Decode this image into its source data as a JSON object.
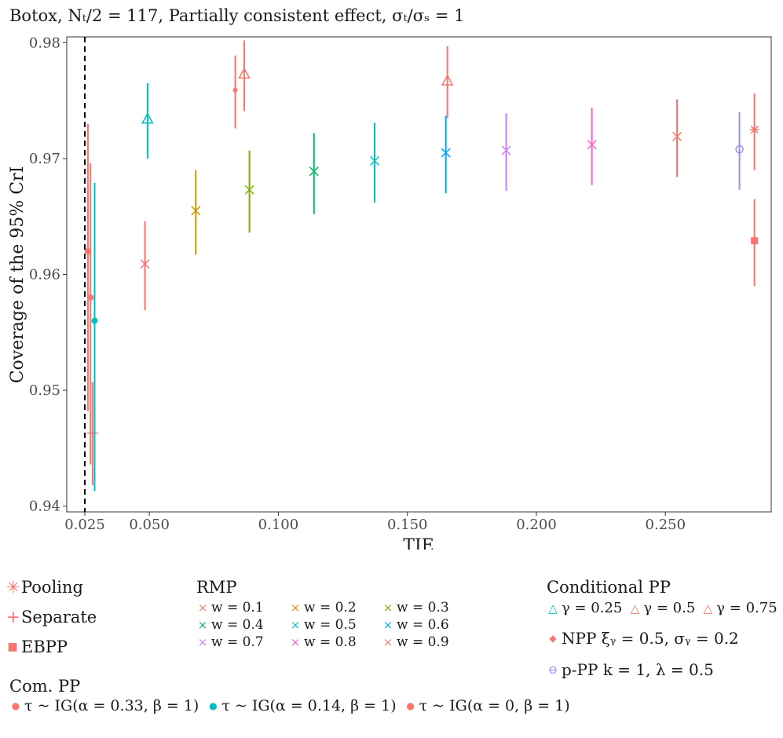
{
  "chart_data": {
    "type": "scatter",
    "title": "Botox, Nₜ/2 = 117, Partially consistent effect, σₜ/σₛ = 1",
    "xlabel": "TIE",
    "ylabel": "Coverage of the 95% CrI",
    "xlim": [
      0.018,
      0.291
    ],
    "ylim": [
      0.9395,
      0.9805
    ],
    "x_ticks": [
      0.025,
      0.05,
      0.1,
      0.15,
      0.2,
      0.25
    ],
    "x_tick_labels": [
      "0.025",
      "0.050",
      "0.100",
      "0.150",
      "0.200",
      "0.250"
    ],
    "y_ticks": [
      0.94,
      0.95,
      0.96,
      0.97,
      0.98
    ],
    "y_tick_labels": [
      "0.94",
      "0.95",
      "0.96",
      "0.97",
      "0.98"
    ],
    "grid": false,
    "reference_line": {
      "x": 0.025,
      "style": "dashed"
    },
    "series": [
      {
        "name": "Pooling",
        "shape": "asterisk",
        "color": "#F8766D",
        "points": [
          {
            "x": 0.2845,
            "y": 0.9725,
            "lo": 0.969,
            "hi": 0.9756
          }
        ]
      },
      {
        "name": "Separate",
        "shape": "plus",
        "color": "#F8766D",
        "points": [
          {
            "x": 0.028,
            "y": 0.9463,
            "lo": 0.9418,
            "hi": 0.9507
          }
        ]
      },
      {
        "name": "EBPP",
        "shape": "square",
        "color": "#F8766D",
        "points": [
          {
            "x": 0.2845,
            "y": 0.9629,
            "lo": 0.959,
            "hi": 0.9665
          }
        ]
      },
      {
        "name": "w = 0.1",
        "group": "RMP",
        "shape": "cross",
        "color": "#F8766D",
        "points": [
          {
            "x": 0.0483,
            "y": 0.9609,
            "lo": 0.9569,
            "hi": 0.9646
          }
        ]
      },
      {
        "name": "w = 0.2",
        "group": "RMP",
        "shape": "cross",
        "color": "#CD9600",
        "points": [
          {
            "x": 0.068,
            "y": 0.9655,
            "lo": 0.9617,
            "hi": 0.969
          }
        ]
      },
      {
        "name": "w = 0.3",
        "group": "RMP",
        "shape": "cross",
        "color": "#7CAE00",
        "points": [
          {
            "x": 0.0888,
            "y": 0.9673,
            "lo": 0.9636,
            "hi": 0.9707
          }
        ]
      },
      {
        "name": "w = 0.4",
        "group": "RMP",
        "shape": "cross",
        "color": "#00BE67",
        "points": [
          {
            "x": 0.1138,
            "y": 0.9689,
            "lo": 0.9652,
            "hi": 0.9722
          }
        ]
      },
      {
        "name": "w = 0.5",
        "group": "RMP",
        "shape": "cross",
        "color": "#00BFC4",
        "points": [
          {
            "x": 0.1373,
            "y": 0.9698,
            "lo": 0.9662,
            "hi": 0.9731
          }
        ]
      },
      {
        "name": "w = 0.6",
        "group": "RMP",
        "shape": "cross",
        "color": "#00A9FF",
        "points": [
          {
            "x": 0.1649,
            "y": 0.9705,
            "lo": 0.967,
            "hi": 0.9737
          }
        ]
      },
      {
        "name": "w = 0.7",
        "group": "RMP",
        "shape": "cross",
        "color": "#C77CFF",
        "points": [
          {
            "x": 0.1883,
            "y": 0.9707,
            "lo": 0.9672,
            "hi": 0.9739
          }
        ]
      },
      {
        "name": "w = 0.8",
        "group": "RMP",
        "shape": "cross",
        "color": "#FF61CC",
        "points": [
          {
            "x": 0.2215,
            "y": 0.9712,
            "lo": 0.9677,
            "hi": 0.9744
          }
        ]
      },
      {
        "name": "w = 0.9",
        "group": "RMP",
        "shape": "cross",
        "color": "#F8766D",
        "points": [
          {
            "x": 0.2545,
            "y": 0.9719,
            "lo": 0.9684,
            "hi": 0.9751
          }
        ]
      },
      {
        "name": "γ = 0.25",
        "group": "Conditional PP",
        "shape": "triangle",
        "color": "#00BFC4",
        "points": [
          {
            "x": 0.0493,
            "y": 0.9734,
            "lo": 0.97,
            "hi": 0.9765
          }
        ]
      },
      {
        "name": "γ = 0.5",
        "group": "Conditional PP",
        "shape": "triangle",
        "color": "#F8766D",
        "points": [
          {
            "x": 0.0868,
            "y": 0.9773,
            "lo": 0.9741,
            "hi": 0.9802
          }
        ]
      },
      {
        "name": "γ = 0.75",
        "group": "Conditional PP",
        "shape": "triangle",
        "color": "#F8766D",
        "points": [
          {
            "x": 0.1655,
            "y": 0.9767,
            "lo": 0.9735,
            "hi": 0.9797
          }
        ]
      },
      {
        "name": "NPP",
        "shape": "diamond",
        "color": "#F8766D",
        "points": [
          {
            "x": 0.0833,
            "y": 0.9759,
            "lo": 0.9726,
            "hi": 0.9789
          }
        ]
      },
      {
        "name": "p-PP",
        "shape": "open-circle",
        "color": "#9590FF",
        "points": [
          {
            "x": 0.2787,
            "y": 0.9708,
            "lo": 0.9673,
            "hi": 0.974
          }
        ]
      },
      {
        "name": "τ ~ IG(α = 0.33, β = 1)",
        "group": "Com. PP",
        "shape": "circle",
        "color": "#F8766D",
        "points": [
          {
            "x": 0.0262,
            "y": 0.962,
            "lo": 0.9482,
            "hi": 0.973
          }
        ]
      },
      {
        "name": "τ ~ IG(α = 0.14, β = 1)",
        "group": "Com. PP",
        "shape": "circle",
        "color": "#00BFC4",
        "points": [
          {
            "x": 0.0288,
            "y": 0.956,
            "lo": 0.9413,
            "hi": 0.9679
          }
        ]
      },
      {
        "name": "τ ~ IG(α = 0, β = 1)",
        "group": "Com. PP",
        "shape": "circle",
        "color": "#F8766D",
        "points": [
          {
            "x": 0.0272,
            "y": 0.958,
            "lo": 0.9436,
            "hi": 0.9696
          }
        ]
      }
    ]
  },
  "legend": {
    "pooling": {
      "symbol": "✳",
      "label": "Pooling",
      "color": "#F8766D"
    },
    "separate": {
      "symbol": "+",
      "label": "Separate",
      "color": "#F8766D"
    },
    "ebpp": {
      "symbol": "■",
      "label": "EBPP",
      "color": "#F8766D"
    },
    "rmp": {
      "title": "RMP",
      "items": [
        {
          "symbol": "×",
          "label": "w = 0.1",
          "color": "#F8766D"
        },
        {
          "symbol": "×",
          "label": "w = 0.2",
          "color": "#CD9600"
        },
        {
          "symbol": "×",
          "label": "w = 0.3",
          "color": "#7CAE00"
        },
        {
          "symbol": "×",
          "label": "w = 0.4",
          "color": "#00BE67"
        },
        {
          "symbol": "×",
          "label": "w = 0.5",
          "color": "#00BFC4"
        },
        {
          "symbol": "×",
          "label": "w = 0.6",
          "color": "#00A9FF"
        },
        {
          "symbol": "×",
          "label": "w = 0.7",
          "color": "#C77CFF"
        },
        {
          "symbol": "×",
          "label": "w = 0.8",
          "color": "#FF61CC"
        },
        {
          "symbol": "×",
          "label": "w = 0.9",
          "color": "#F8766D"
        }
      ]
    },
    "conditional_pp": {
      "title": "Conditional PP",
      "items": [
        {
          "symbol": "△",
          "label": "γ = 0.25",
          "color": "#00BFC4"
        },
        {
          "symbol": "△",
          "label": "γ = 0.5",
          "color": "#F8766D"
        },
        {
          "symbol": "△",
          "label": "γ = 0.75",
          "color": "#F8766D"
        }
      ]
    },
    "npp": {
      "symbol": "◆",
      "label": "NPP ξᵧ = 0.5, σᵧ = 0.2",
      "color": "#F8766D"
    },
    "ppp": {
      "symbol": "⊖",
      "label": "p-PP k = 1, λ = 0.5",
      "color": "#9590FF"
    },
    "com_pp": {
      "title": "Com. PP",
      "items": [
        {
          "symbol": "●",
          "label": "τ ~ IG(α = 0.33, β = 1)",
          "color": "#F8766D"
        },
        {
          "symbol": "●",
          "label": "τ ~ IG(α = 0.14, β = 1)",
          "color": "#00BFC4"
        },
        {
          "symbol": "●",
          "label": "τ ~ IG(α = 0, β = 1)",
          "color": "#F8766D"
        }
      ]
    }
  }
}
